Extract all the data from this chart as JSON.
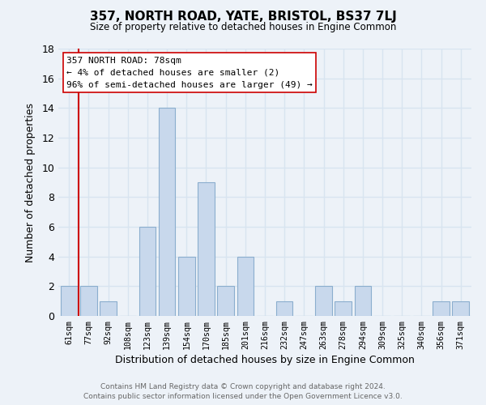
{
  "title": "357, NORTH ROAD, YATE, BRISTOL, BS37 7LJ",
  "subtitle": "Size of property relative to detached houses in Engine Common",
  "xlabel": "Distribution of detached houses by size in Engine Common",
  "ylabel": "Number of detached properties",
  "bin_labels": [
    "61sqm",
    "77sqm",
    "92sqm",
    "108sqm",
    "123sqm",
    "139sqm",
    "154sqm",
    "170sqm",
    "185sqm",
    "201sqm",
    "216sqm",
    "232sqm",
    "247sqm",
    "263sqm",
    "278sqm",
    "294sqm",
    "309sqm",
    "325sqm",
    "340sqm",
    "356sqm",
    "371sqm"
  ],
  "bar_heights": [
    2,
    2,
    1,
    0,
    6,
    14,
    4,
    9,
    2,
    4,
    0,
    1,
    0,
    2,
    1,
    2,
    0,
    0,
    0,
    1,
    1
  ],
  "bar_color": "#c8d8ec",
  "bar_edge_color": "#8baece",
  "vline_x": 0.5,
  "vline_color": "#cc0000",
  "ylim": [
    0,
    18
  ],
  "yticks": [
    0,
    2,
    4,
    6,
    8,
    10,
    12,
    14,
    16,
    18
  ],
  "annotation_title": "357 NORTH ROAD: 78sqm",
  "annotation_line1": "← 4% of detached houses are smaller (2)",
  "annotation_line2": "96% of semi-detached houses are larger (49) →",
  "annotation_box_color": "#ffffff",
  "annotation_box_edge": "#cc0000",
  "footer_line1": "Contains HM Land Registry data © Crown copyright and database right 2024.",
  "footer_line2": "Contains public sector information licensed under the Open Government Licence v3.0.",
  "background_color": "#edf2f8",
  "grid_color": "#d8e4f0"
}
